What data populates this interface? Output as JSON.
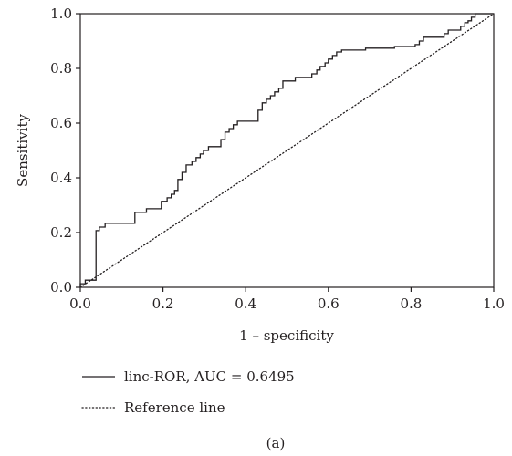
{
  "chart_data": {
    "type": "line",
    "title": "",
    "xlabel": "1 – specificity",
    "ylabel": "Sensitivity",
    "xlim": [
      0,
      1
    ],
    "ylim": [
      0,
      1
    ],
    "xticks": [
      "0.0",
      "0.2",
      "0.4",
      "0.6",
      "0.8",
      "1.0"
    ],
    "yticks": [
      "0.0",
      "0.2",
      "0.4",
      "0.6",
      "0.8",
      "1.0"
    ],
    "grid": false,
    "legend_position": "bottom-left below plot",
    "series": [
      {
        "name": "linc-ROR, AUC = 0.6495",
        "style": "solid",
        "color": "#231f20",
        "points": [
          [
            0.0,
            0.0
          ],
          [
            0.0,
            0.013
          ],
          [
            0.012,
            0.013
          ],
          [
            0.012,
            0.026
          ],
          [
            0.038,
            0.026
          ],
          [
            0.038,
            0.207
          ],
          [
            0.046,
            0.207
          ],
          [
            0.046,
            0.22
          ],
          [
            0.06,
            0.22
          ],
          [
            0.06,
            0.234
          ],
          [
            0.132,
            0.234
          ],
          [
            0.132,
            0.274
          ],
          [
            0.16,
            0.274
          ],
          [
            0.16,
            0.287
          ],
          [
            0.196,
            0.287
          ],
          [
            0.196,
            0.314
          ],
          [
            0.21,
            0.314
          ],
          [
            0.21,
            0.327
          ],
          [
            0.22,
            0.327
          ],
          [
            0.22,
            0.34
          ],
          [
            0.228,
            0.34
          ],
          [
            0.228,
            0.354
          ],
          [
            0.236,
            0.354
          ],
          [
            0.236,
            0.394
          ],
          [
            0.246,
            0.394
          ],
          [
            0.246,
            0.42
          ],
          [
            0.256,
            0.42
          ],
          [
            0.256,
            0.447
          ],
          [
            0.27,
            0.447
          ],
          [
            0.27,
            0.46
          ],
          [
            0.28,
            0.46
          ],
          [
            0.28,
            0.474
          ],
          [
            0.29,
            0.474
          ],
          [
            0.29,
            0.487
          ],
          [
            0.298,
            0.487
          ],
          [
            0.298,
            0.5
          ],
          [
            0.31,
            0.5
          ],
          [
            0.31,
            0.514
          ],
          [
            0.34,
            0.514
          ],
          [
            0.34,
            0.54
          ],
          [
            0.35,
            0.54
          ],
          [
            0.35,
            0.567
          ],
          [
            0.36,
            0.567
          ],
          [
            0.36,
            0.58
          ],
          [
            0.37,
            0.58
          ],
          [
            0.37,
            0.594
          ],
          [
            0.38,
            0.594
          ],
          [
            0.38,
            0.607
          ],
          [
            0.43,
            0.607
          ],
          [
            0.43,
            0.647
          ],
          [
            0.44,
            0.647
          ],
          [
            0.44,
            0.674
          ],
          [
            0.45,
            0.674
          ],
          [
            0.45,
            0.687
          ],
          [
            0.46,
            0.687
          ],
          [
            0.46,
            0.7
          ],
          [
            0.47,
            0.7
          ],
          [
            0.47,
            0.714
          ],
          [
            0.48,
            0.714
          ],
          [
            0.48,
            0.727
          ],
          [
            0.49,
            0.727
          ],
          [
            0.49,
            0.754
          ],
          [
            0.52,
            0.754
          ],
          [
            0.52,
            0.767
          ],
          [
            0.56,
            0.767
          ],
          [
            0.56,
            0.78
          ],
          [
            0.572,
            0.78
          ],
          [
            0.572,
            0.794
          ],
          [
            0.58,
            0.794
          ],
          [
            0.58,
            0.807
          ],
          [
            0.592,
            0.807
          ],
          [
            0.592,
            0.82
          ],
          [
            0.6,
            0.82
          ],
          [
            0.6,
            0.834
          ],
          [
            0.61,
            0.834
          ],
          [
            0.61,
            0.847
          ],
          [
            0.62,
            0.847
          ],
          [
            0.62,
            0.86
          ],
          [
            0.632,
            0.86
          ],
          [
            0.632,
            0.867
          ],
          [
            0.69,
            0.867
          ],
          [
            0.69,
            0.874
          ],
          [
            0.76,
            0.874
          ],
          [
            0.76,
            0.88
          ],
          [
            0.81,
            0.88
          ],
          [
            0.81,
            0.887
          ],
          [
            0.82,
            0.887
          ],
          [
            0.82,
            0.9
          ],
          [
            0.83,
            0.9
          ],
          [
            0.83,
            0.914
          ],
          [
            0.88,
            0.914
          ],
          [
            0.88,
            0.927
          ],
          [
            0.89,
            0.927
          ],
          [
            0.89,
            0.94
          ],
          [
            0.92,
            0.94
          ],
          [
            0.92,
            0.954
          ],
          [
            0.93,
            0.954
          ],
          [
            0.93,
            0.967
          ],
          [
            0.938,
            0.967
          ],
          [
            0.938,
            0.974
          ],
          [
            0.946,
            0.974
          ],
          [
            0.946,
            0.987
          ],
          [
            0.955,
            0.987
          ],
          [
            0.955,
            1.0
          ],
          [
            1.0,
            1.0
          ]
        ]
      },
      {
        "name": "Reference line",
        "style": "dotted",
        "color": "#231f20",
        "points": [
          [
            0,
            0
          ],
          [
            1,
            1
          ]
        ]
      }
    ]
  },
  "caption": "(a)",
  "colors": {
    "ink": "#231f20",
    "background": "#ffffff"
  }
}
